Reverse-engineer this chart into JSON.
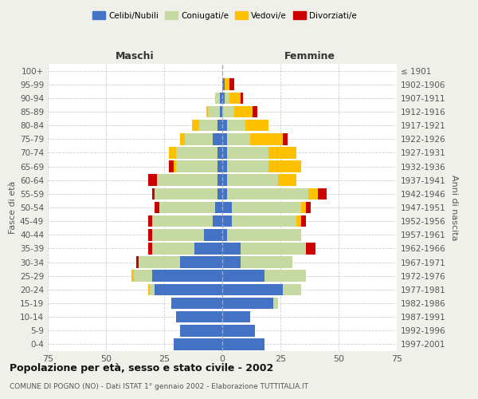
{
  "age_groups": [
    "0-4",
    "5-9",
    "10-14",
    "15-19",
    "20-24",
    "25-29",
    "30-34",
    "35-39",
    "40-44",
    "45-49",
    "50-54",
    "55-59",
    "60-64",
    "65-69",
    "70-74",
    "75-79",
    "80-84",
    "85-89",
    "90-94",
    "95-99",
    "100+"
  ],
  "birth_years": [
    "1997-2001",
    "1992-1996",
    "1987-1991",
    "1982-1986",
    "1977-1981",
    "1972-1976",
    "1967-1971",
    "1962-1966",
    "1957-1961",
    "1952-1956",
    "1947-1951",
    "1942-1946",
    "1937-1941",
    "1932-1936",
    "1927-1931",
    "1922-1926",
    "1917-1921",
    "1912-1916",
    "1907-1911",
    "1902-1906",
    "≤ 1901"
  ],
  "male": {
    "celibe": [
      21,
      18,
      20,
      22,
      29,
      30,
      18,
      12,
      8,
      4,
      3,
      2,
      2,
      2,
      2,
      4,
      2,
      1,
      1,
      0,
      0
    ],
    "coniugato": [
      0,
      0,
      0,
      0,
      2,
      8,
      18,
      18,
      22,
      26,
      24,
      27,
      26,
      18,
      18,
      12,
      8,
      5,
      2,
      0,
      0
    ],
    "vedovo": [
      0,
      0,
      0,
      0,
      1,
      1,
      0,
      0,
      0,
      0,
      0,
      0,
      0,
      1,
      3,
      2,
      3,
      1,
      0,
      0,
      0
    ],
    "divorziato": [
      0,
      0,
      0,
      0,
      0,
      0,
      1,
      2,
      2,
      2,
      2,
      1,
      4,
      2,
      0,
      0,
      0,
      0,
      0,
      0,
      0
    ]
  },
  "female": {
    "nubile": [
      18,
      14,
      12,
      22,
      26,
      18,
      8,
      8,
      2,
      4,
      4,
      2,
      2,
      2,
      2,
      2,
      2,
      0,
      1,
      1,
      0
    ],
    "coniugata": [
      0,
      0,
      0,
      2,
      8,
      18,
      22,
      28,
      32,
      28,
      30,
      35,
      22,
      18,
      18,
      10,
      8,
      5,
      2,
      0,
      0
    ],
    "vedova": [
      0,
      0,
      0,
      0,
      0,
      0,
      0,
      0,
      0,
      2,
      2,
      4,
      8,
      14,
      12,
      14,
      10,
      8,
      5,
      2,
      0
    ],
    "divorziata": [
      0,
      0,
      0,
      0,
      0,
      0,
      0,
      4,
      0,
      2,
      2,
      4,
      0,
      0,
      0,
      2,
      0,
      2,
      1,
      2,
      0
    ]
  },
  "colors": {
    "celibe": "#4472c4",
    "coniugato": "#c5d9a0",
    "vedovo": "#ffc000",
    "divorziato": "#cc0000"
  },
  "title": "Popolazione per età, sesso e stato civile - 2002",
  "subtitle": "COMUNE DI POGNO (NO) - Dati ISTAT 1° gennaio 2002 - Elaborazione TUTTITALIA.IT",
  "xlabel_left": "Maschi",
  "xlabel_right": "Femmine",
  "ylabel_left": "Fasce di età",
  "ylabel_right": "Anni di nascita",
  "xlim": 75,
  "background_color": "#f0f0eb",
  "plot_bg": "#ffffff",
  "grid_color": "#bbbbbb"
}
